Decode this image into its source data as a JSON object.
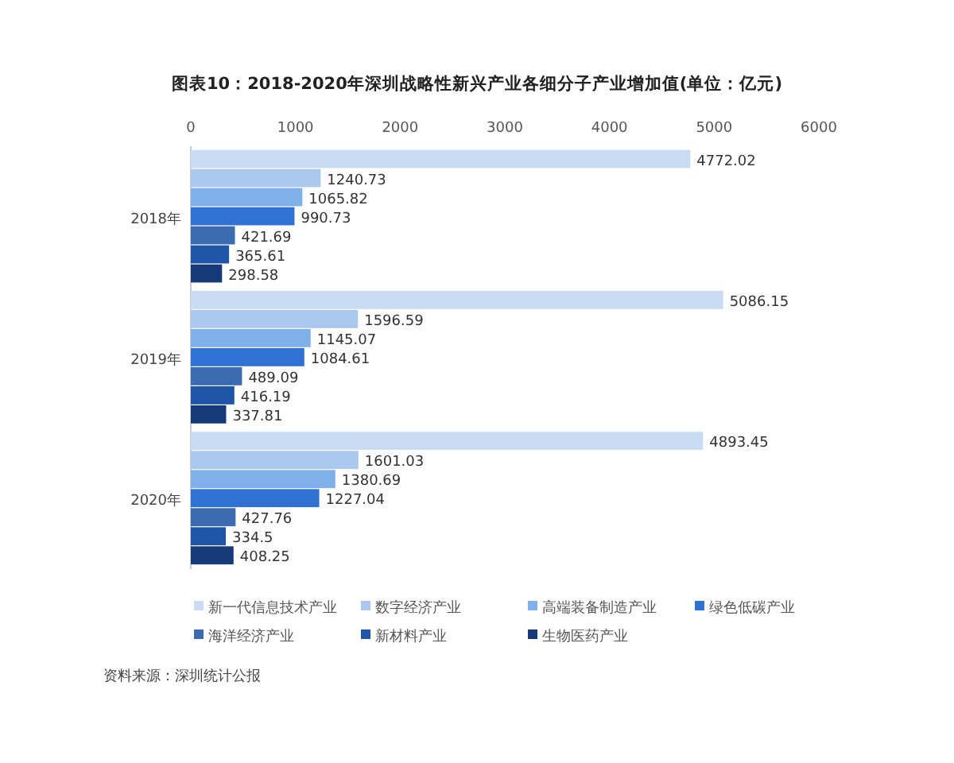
{
  "chart_data": {
    "type": "bar",
    "orientation": "horizontal",
    "title": "图表10：2018-2020年深圳战略性新兴产业各细分子产业增加值(单位：亿元)",
    "categories": [
      "2018年",
      "2019年",
      "2020年"
    ],
    "series": [
      {
        "name": "新一代信息技术产业",
        "color": "#cadcf4",
        "values": [
          4772.02,
          5086.15,
          4893.45
        ]
      },
      {
        "name": "数字经济产业",
        "color": "#abc8ee",
        "values": [
          1240.73,
          1596.59,
          1601.03
        ]
      },
      {
        "name": "高端装备制造产业",
        "color": "#80b0e9",
        "values": [
          1065.82,
          1145.07,
          1380.69
        ]
      },
      {
        "name": "绿色低碳产业",
        "color": "#2f72d4",
        "values": [
          990.73,
          1084.61,
          1227.04
        ]
      },
      {
        "name": "海洋经济产业",
        "color": "#3b6cb2",
        "values": [
          421.69,
          489.09,
          427.76
        ]
      },
      {
        "name": "新材料产业",
        "color": "#1f55a6",
        "values": [
          365.61,
          416.19,
          334.5
        ]
      },
      {
        "name": "生物医药产业",
        "color": "#163a78",
        "values": [
          298.58,
          337.81,
          408.25
        ]
      }
    ],
    "xlim": [
      0,
      6000
    ],
    "xticks": [
      0,
      1000,
      2000,
      3000,
      4000,
      5000,
      6000
    ],
    "data_labels": true,
    "grid": false,
    "legend": "bottom",
    "annotations": [
      "资料来源：深圳统计公报"
    ]
  }
}
